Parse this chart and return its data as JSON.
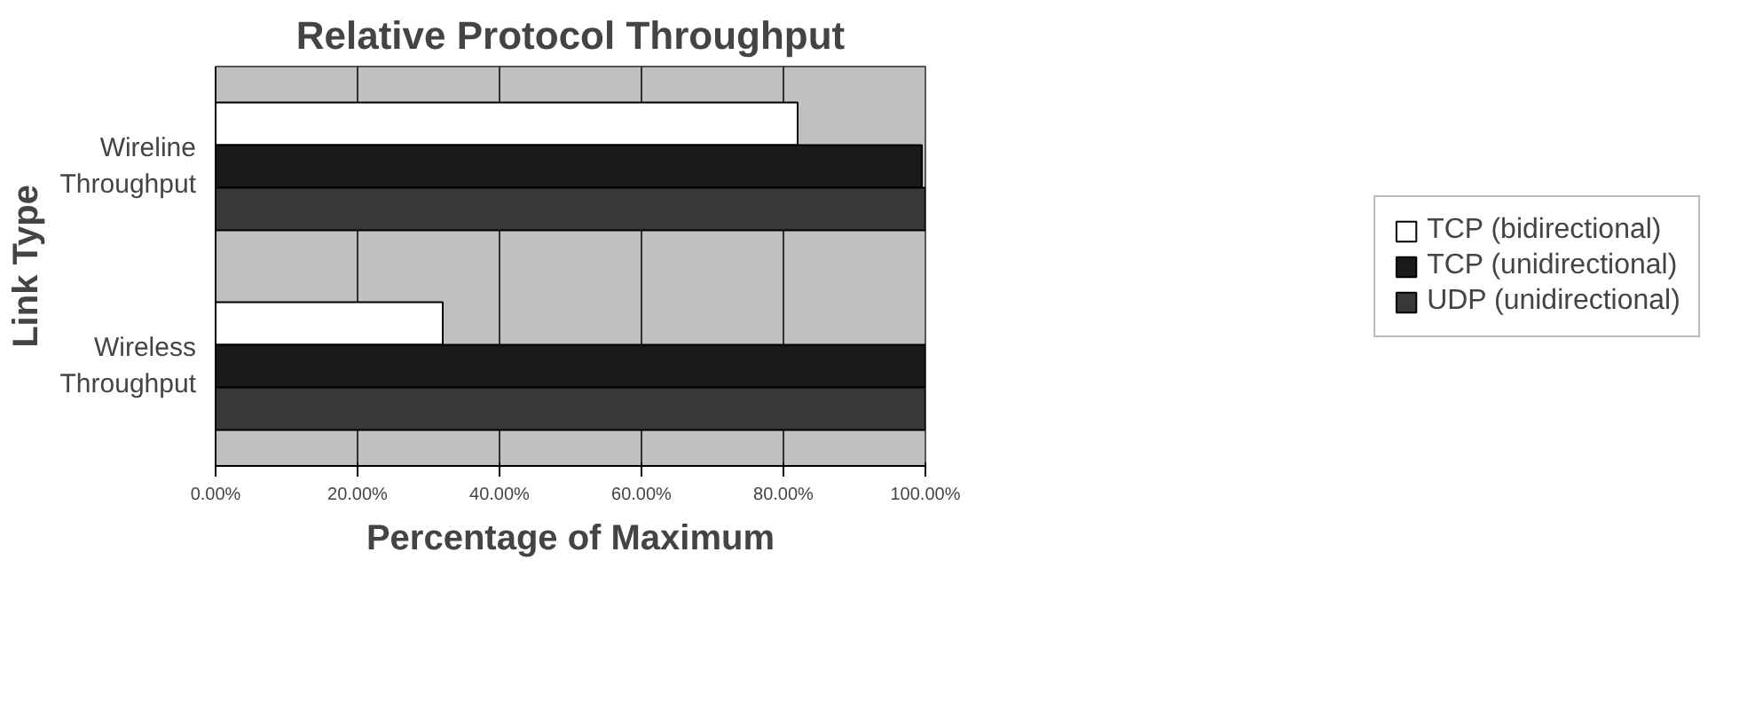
{
  "chart_data": {
    "type": "bar",
    "orientation": "horizontal",
    "title": "Relative Protocol Throughput",
    "xlabel": "Percentage of Maximum",
    "ylabel": "Link Type",
    "categories": [
      "Wireline Throughput",
      "Wireless Throughput"
    ],
    "series": [
      {
        "name": "TCP (bidirectional)",
        "color": "#ffffff",
        "values": [
          82,
          32
        ]
      },
      {
        "name": "TCP (unidirectional)",
        "color": "#1a1a1a",
        "values": [
          99.5,
          100
        ]
      },
      {
        "name": "UDP (unidirectional)",
        "color": "#383838",
        "values": [
          100,
          100
        ]
      }
    ],
    "xlim": [
      0,
      100
    ],
    "xticks": [
      {
        "value": 0,
        "label": "0.00%"
      },
      {
        "value": 20,
        "label": "20.00%"
      },
      {
        "value": 40,
        "label": "40.00%"
      },
      {
        "value": 60,
        "label": "60.00%"
      },
      {
        "value": 80,
        "label": "80.00%"
      },
      {
        "value": 100,
        "label": "100.00%"
      }
    ],
    "grid": "x",
    "legend": "right"
  }
}
